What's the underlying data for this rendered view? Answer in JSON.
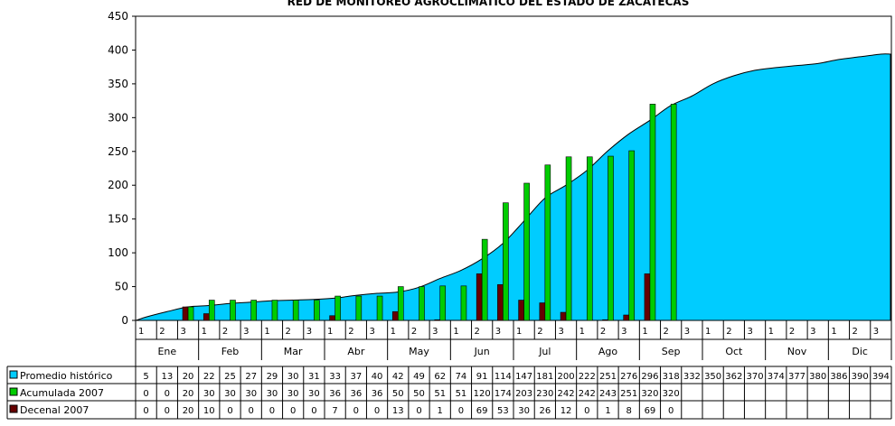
{
  "chart_data": {
    "type": "bar",
    "title": "RED DE MONITOREO AGROCLIMATICO DEL ESTADO DE ZACATECAS",
    "ylim": [
      0,
      450
    ],
    "yticks": [
      0,
      50,
      100,
      150,
      200,
      250,
      300,
      350,
      400,
      450
    ],
    "months": [
      "Ene",
      "Feb",
      "Mar",
      "Abr",
      "May",
      "Jun",
      "Jul",
      "Ago",
      "Sep",
      "Oct",
      "Nov",
      "Dic"
    ],
    "decades": [
      "1",
      "2",
      "3"
    ],
    "colors": {
      "historico": "#00ccff",
      "acumulada": "#00cc00",
      "decenal": "#660000"
    },
    "series": [
      {
        "name": "Promedio histórico",
        "type": "area",
        "values": [
          5,
          13,
          20,
          22,
          25,
          27,
          29,
          30,
          31,
          33,
          37,
          40,
          42,
          49,
          62,
          74,
          91,
          114,
          147,
          181,
          200,
          222,
          251,
          276,
          296,
          318,
          332,
          350,
          362,
          370,
          374,
          377,
          380,
          386,
          390,
          394
        ]
      },
      {
        "name": "Acumulada 2007",
        "type": "bar",
        "values": [
          0,
          0,
          20,
          30,
          30,
          30,
          30,
          30,
          30,
          36,
          36,
          36,
          50,
          50,
          51,
          51,
          120,
          174,
          203,
          230,
          242,
          242,
          243,
          251,
          320,
          320,
          null,
          null,
          null,
          null,
          null,
          null,
          null,
          null,
          null,
          null
        ]
      },
      {
        "name": "Decenal 2007",
        "type": "bar",
        "values": [
          0,
          0,
          20,
          10,
          0,
          0,
          0,
          0,
          0,
          7,
          0,
          0,
          13,
          0,
          1,
          0,
          69,
          53,
          30,
          26,
          12,
          0,
          1,
          8,
          69,
          0,
          null,
          null,
          null,
          null,
          null,
          null,
          null,
          null,
          null,
          null
        ]
      }
    ]
  }
}
